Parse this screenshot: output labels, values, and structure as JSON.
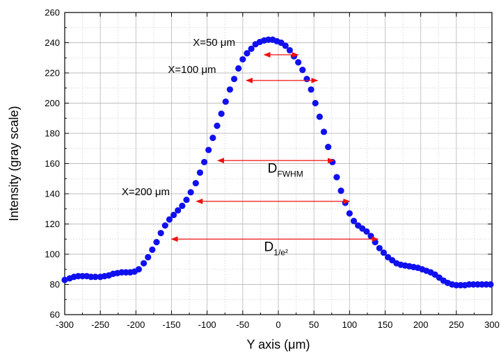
{
  "chart_data": {
    "type": "scatter",
    "xlabel": "Y axis (μm)",
    "ylabel": "Intensity (gray scale)",
    "xlim": [
      -300,
      300
    ],
    "ylim": [
      60,
      260
    ],
    "xticks": [
      -300,
      -250,
      -200,
      -150,
      -100,
      -50,
      0,
      50,
      100,
      150,
      200,
      250,
      300
    ],
    "yticks": [
      60,
      80,
      100,
      120,
      140,
      160,
      180,
      200,
      220,
      240,
      260
    ],
    "grid": true,
    "marker_color": "#1010ee",
    "arrow_color": "#ee1111",
    "series": [
      {
        "x": [
          -300,
          -293,
          -287,
          -281,
          -275,
          -269,
          -263,
          -257,
          -250,
          -244,
          -238,
          -232,
          -226,
          -220,
          -214,
          -208,
          -202,
          -196,
          -189,
          -183,
          -177,
          -171,
          -165,
          -159,
          -153,
          -147,
          -141,
          -135,
          -129,
          -123,
          -116,
          -110,
          -104,
          -98,
          -92,
          -86,
          -80,
          -74,
          -68,
          -62,
          -56,
          -50,
          -44,
          -38,
          -32,
          -26,
          -20,
          -14,
          -8,
          -2,
          4,
          10,
          16,
          22,
          28,
          34,
          40,
          46,
          52,
          58,
          64,
          70,
          76,
          82,
          88,
          94,
          100,
          106,
          112,
          118,
          124,
          130,
          136,
          142,
          148,
          154,
          160,
          166,
          172,
          178,
          184,
          190,
          196,
          202,
          208,
          214,
          220,
          226,
          232,
          238,
          244,
          250,
          256,
          262,
          268,
          274,
          280,
          286,
          292,
          298
        ],
        "y": [
          83,
          84,
          85,
          85.5,
          85.5,
          85.5,
          85,
          85,
          85,
          85.5,
          86,
          87,
          87.5,
          88,
          88,
          88,
          88.5,
          90,
          94,
          98,
          103,
          108,
          114,
          119,
          123,
          126,
          129,
          132,
          136,
          141,
          147,
          154,
          161,
          169,
          177,
          185,
          193,
          201,
          209,
          216,
          223,
          229,
          233,
          236,
          239,
          240.5,
          241.5,
          242,
          242,
          241,
          240,
          238,
          235,
          231,
          227,
          222,
          216,
          209,
          200,
          191,
          181,
          171,
          161,
          151,
          142,
          134,
          127,
          122,
          119,
          117,
          115,
          112,
          108,
          104,
          101,
          98,
          96,
          94,
          93,
          92.5,
          92,
          91.5,
          91,
          90,
          89,
          88,
          86.5,
          84.5,
          82.5,
          81,
          80,
          79.5,
          79.5,
          79.5,
          80,
          80,
          80,
          80,
          80,
          80
        ]
      }
    ],
    "annotations": [
      {
        "text": "X=50 μm",
        "x_from": -20,
        "x_to": 28,
        "y": 232
      },
      {
        "text": "X=100 μm",
        "x_from": -45,
        "x_to": 55,
        "y": 215
      },
      {
        "label": "D",
        "subscript": "FWHM",
        "x_from": -85,
        "x_to": 78,
        "y": 162
      },
      {
        "text": "X=200 μm",
        "x_from": -115,
        "x_to": 100,
        "y": 135
      },
      {
        "label": "D",
        "subscript": "1/e²",
        "x_from": -150,
        "x_to": 140,
        "y": 110
      }
    ]
  }
}
